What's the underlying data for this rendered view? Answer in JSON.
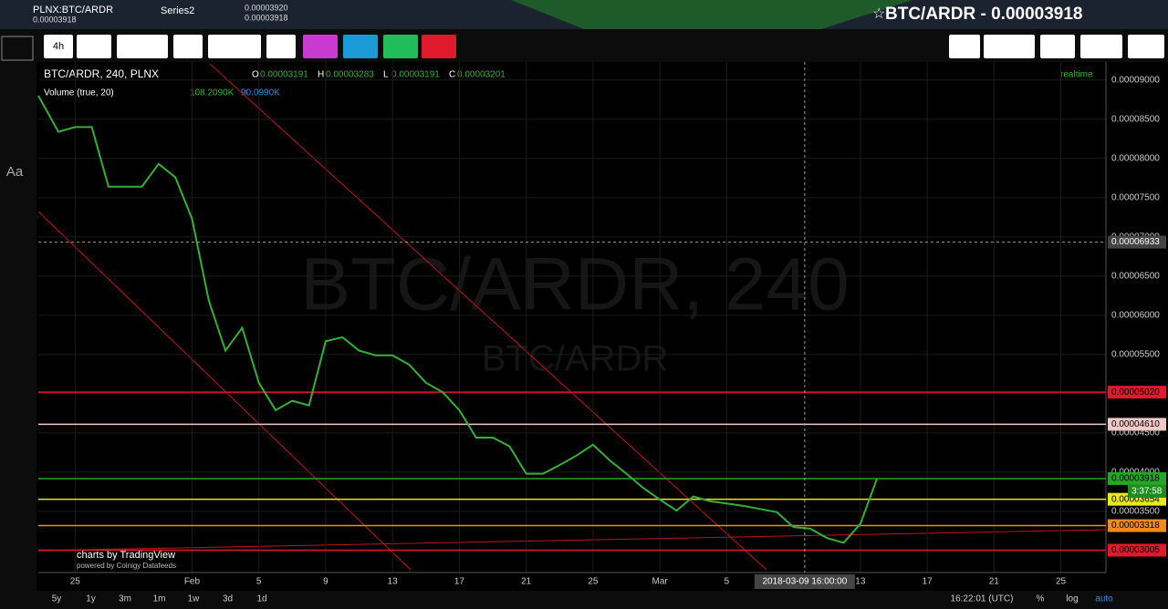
{
  "top_bar": {
    "symbol": "PLNX:BTC/ARDR",
    "symbol_price": "0.00003918",
    "series": "Series2",
    "series_values": [
      "0.00003920",
      "0.00003918"
    ],
    "headline": "BTC/ARDR - 0.00003918"
  },
  "toolbar": {
    "interval": "4h"
  },
  "left_tools": {
    "text_tool": "Aa"
  },
  "legend": {
    "title": "BTC/ARDR, 240, PLNX",
    "ohlc": [
      {
        "key": "O",
        "value": "0.00003191"
      },
      {
        "key": "H",
        "value": "0.00003283"
      },
      {
        "key": "L",
        "value": "0.00003191"
      },
      {
        "key": "C",
        "value": "0.00003201"
      }
    ],
    "volume": "Volume (true, 20)",
    "volume_values": [
      "108.2090K",
      "90.0990K"
    ],
    "realtime": "realtime"
  },
  "watermark": {
    "main": "BTC/ARDR, 240",
    "sub": "BTC/ARDR"
  },
  "branding": {
    "line1": "charts by TradingView",
    "line2": "powered by Coinigy Datafeeds"
  },
  "chart_data": {
    "type": "line",
    "color": "#35b035",
    "x": [
      22.8,
      24,
      25,
      26,
      27,
      28,
      29,
      30,
      31,
      32,
      33,
      34,
      35,
      36,
      37,
      38,
      39,
      40,
      41,
      42,
      43,
      44,
      45,
      46,
      47,
      48,
      49,
      50,
      51,
      52,
      53,
      54,
      55,
      56,
      57,
      58,
      59,
      60,
      61,
      62,
      63,
      64,
      65,
      66,
      67,
      68,
      69,
      70,
      71,
      72,
      73
    ],
    "values": [
      8.8e-05,
      8.34e-05,
      8.4e-05,
      8.4e-05,
      7.64e-05,
      7.64e-05,
      7.64e-05,
      7.93e-05,
      7.76e-05,
      7.23e-05,
      6.19e-05,
      5.55e-05,
      5.84e-05,
      5.14e-05,
      4.79e-05,
      4.91e-05,
      4.85e-05,
      5.67e-05,
      5.72e-05,
      5.55e-05,
      5.49e-05,
      5.49e-05,
      5.37e-05,
      5.14e-05,
      5.02e-05,
      4.79e-05,
      4.44e-05,
      4.44e-05,
      4.33e-05,
      3.98e-05,
      3.98e-05,
      4.09e-05,
      4.21e-05,
      4.35e-05,
      4.15e-05,
      3.98e-05,
      3.8e-05,
      3.65e-05,
      3.51e-05,
      3.69e-05,
      3.63e-05,
      3.6e-05,
      3.57e-05,
      3.53e-05,
      3.49e-05,
      3.3e-05,
      3.28e-05,
      3.16e-05,
      3.1e-05,
      3.34e-05,
      3.92e-05
    ],
    "xlim": [
      22.8,
      86.7
    ],
    "xticks": [
      {
        "value": 25,
        "label": "25"
      },
      {
        "value": 32,
        "label": "Feb"
      },
      {
        "value": 36,
        "label": "5"
      },
      {
        "value": 40,
        "label": "9"
      },
      {
        "value": 44,
        "label": "13"
      },
      {
        "value": 48,
        "label": "17"
      },
      {
        "value": 52,
        "label": "21"
      },
      {
        "value": 56,
        "label": "25"
      },
      {
        "value": 60,
        "label": "Mar"
      },
      {
        "value": 64,
        "label": "5"
      },
      {
        "value": 72,
        "label": "13"
      },
      {
        "value": 76,
        "label": "17"
      },
      {
        "value": 80,
        "label": "21"
      },
      {
        "value": 84,
        "label": "25"
      }
    ],
    "ylim": [
      2.72e-05,
      9.23e-05
    ],
    "yticks": [
      {
        "value": 9e-05,
        "label": "0.00009000"
      },
      {
        "value": 8.5e-05,
        "label": "0.00008500"
      },
      {
        "value": 8e-05,
        "label": "0.00008000"
      },
      {
        "value": 7.5e-05,
        "label": "0.00007500"
      },
      {
        "value": 7e-05,
        "label": "0.00007000"
      },
      {
        "value": 6.5e-05,
        "label": "0.00006500"
      },
      {
        "value": 6e-05,
        "label": "0.00006000"
      },
      {
        "value": 5.5e-05,
        "label": "0.00005500"
      },
      {
        "value": 5e-05,
        "label": "0.00005000"
      },
      {
        "value": 4.5e-05,
        "label": "0.00004500"
      },
      {
        "value": 4e-05,
        "label": "0.00004000"
      },
      {
        "value": 3.5e-05,
        "label": "0.00003500"
      }
    ],
    "grid": true,
    "price_levels": [
      {
        "value": 5.02e-05,
        "label": "0.00005020",
        "color": "#e0192c"
      },
      {
        "value": 4.61e-05,
        "label": "0.00004610",
        "color": "#f0c8c8"
      },
      {
        "value": 3.918e-05,
        "label": "0.00003918",
        "color": "#26a626"
      },
      {
        "value": 3.654e-05,
        "label": "0.00003654",
        "color": "#e8e81a"
      },
      {
        "value": 3.318e-05,
        "label": "0.00003318",
        "color": "#f08a1c"
      },
      {
        "value": 3.005e-05,
        "label": "0.00003005",
        "color": "#e0192c"
      }
    ],
    "countdown": "3:37:58",
    "crosshair": {
      "x": 68.67,
      "x_label": "2018-03-09 16:00:00",
      "y": {
        "value": 6.933e-05,
        "label": "0.00006933"
      }
    }
  },
  "bottom_bar": {
    "ranges": [
      "5y",
      "1y",
      "3m",
      "1m",
      "1w",
      "3d",
      "1d"
    ],
    "clock": "16:22:01 (UTC)",
    "options": [
      "%",
      "log",
      "auto"
    ]
  }
}
